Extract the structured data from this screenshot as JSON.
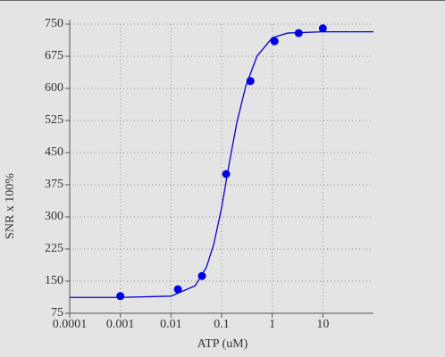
{
  "chart_data": {
    "type": "scatter",
    "x_label": "ATP (uM)",
    "y_label": "SNR x 100%",
    "xlim": [
      0.0001,
      100
    ],
    "ylim": [
      75,
      750
    ],
    "log_x": true,
    "grid": true,
    "xticks": [
      0.0001,
      0.001,
      0.01,
      0.1,
      1,
      10
    ],
    "yticks": [
      75,
      150,
      225,
      300,
      375,
      450,
      525,
      600,
      675,
      750
    ],
    "series": [
      {
        "type": "scatter",
        "color": "#0000e6",
        "x": [
          0.001,
          0.0137,
          0.041,
          0.123,
          0.37,
          1.11,
          3.33,
          10
        ],
        "values": [
          115,
          131,
          162,
          400,
          617,
          710,
          729,
          740
        ]
      },
      {
        "type": "line",
        "color": "#0000cc",
        "x": [
          0.0001,
          0.001,
          0.01,
          0.03,
          0.05,
          0.07,
          0.1,
          0.14,
          0.2,
          0.3,
          0.5,
          1,
          2,
          10,
          100
        ],
        "values": [
          112,
          112,
          115,
          139,
          182,
          236,
          321,
          422,
          520,
          605,
          675,
          718,
          729,
          732,
          732
        ]
      }
    ]
  }
}
